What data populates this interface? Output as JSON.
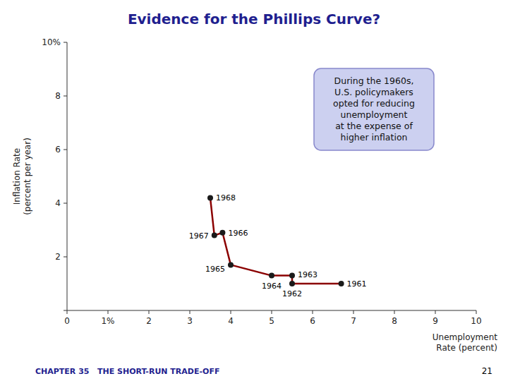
{
  "chart_data": {
    "type": "line",
    "title": "Evidence for the Phillips Curve?",
    "x_label": "Unemployment\nRate (percent)",
    "y_label": "Inflation Rate\n(percent per year)",
    "x": [
      6.7,
      5.5,
      5.5,
      5.0,
      4.0,
      3.8,
      3.6,
      3.5
    ],
    "values": [
      1.0,
      1.0,
      1.3,
      1.3,
      1.7,
      2.9,
      2.8,
      4.2
    ],
    "labels": [
      "1961",
      "1962",
      "1963",
      "1964",
      "1965",
      "1966",
      "1967",
      "1968"
    ],
    "color": "#8b0000",
    "marker": "circle",
    "xlim": [
      0,
      10
    ],
    "ylim": [
      0,
      10
    ],
    "xticks": [
      0,
      {
        "value": 1,
        "label": "1%"
      },
      2,
      3,
      4,
      5,
      6,
      7,
      8,
      9,
      10
    ],
    "yticks": [
      {
        "value": 0,
        "label": null
      },
      2,
      4,
      6,
      8,
      {
        "value": 10,
        "label": "10%"
      }
    ],
    "grid": false,
    "annotations": [
      "During the 1960s,\nU.S. policymakers\nopted for reducing\nunemployment\nat the expense of\nhigher inflation"
    ],
    "footnotes": [
      "CHAPTER 35   THE SHORT-RUN TRADE-OFF",
      "21"
    ]
  }
}
